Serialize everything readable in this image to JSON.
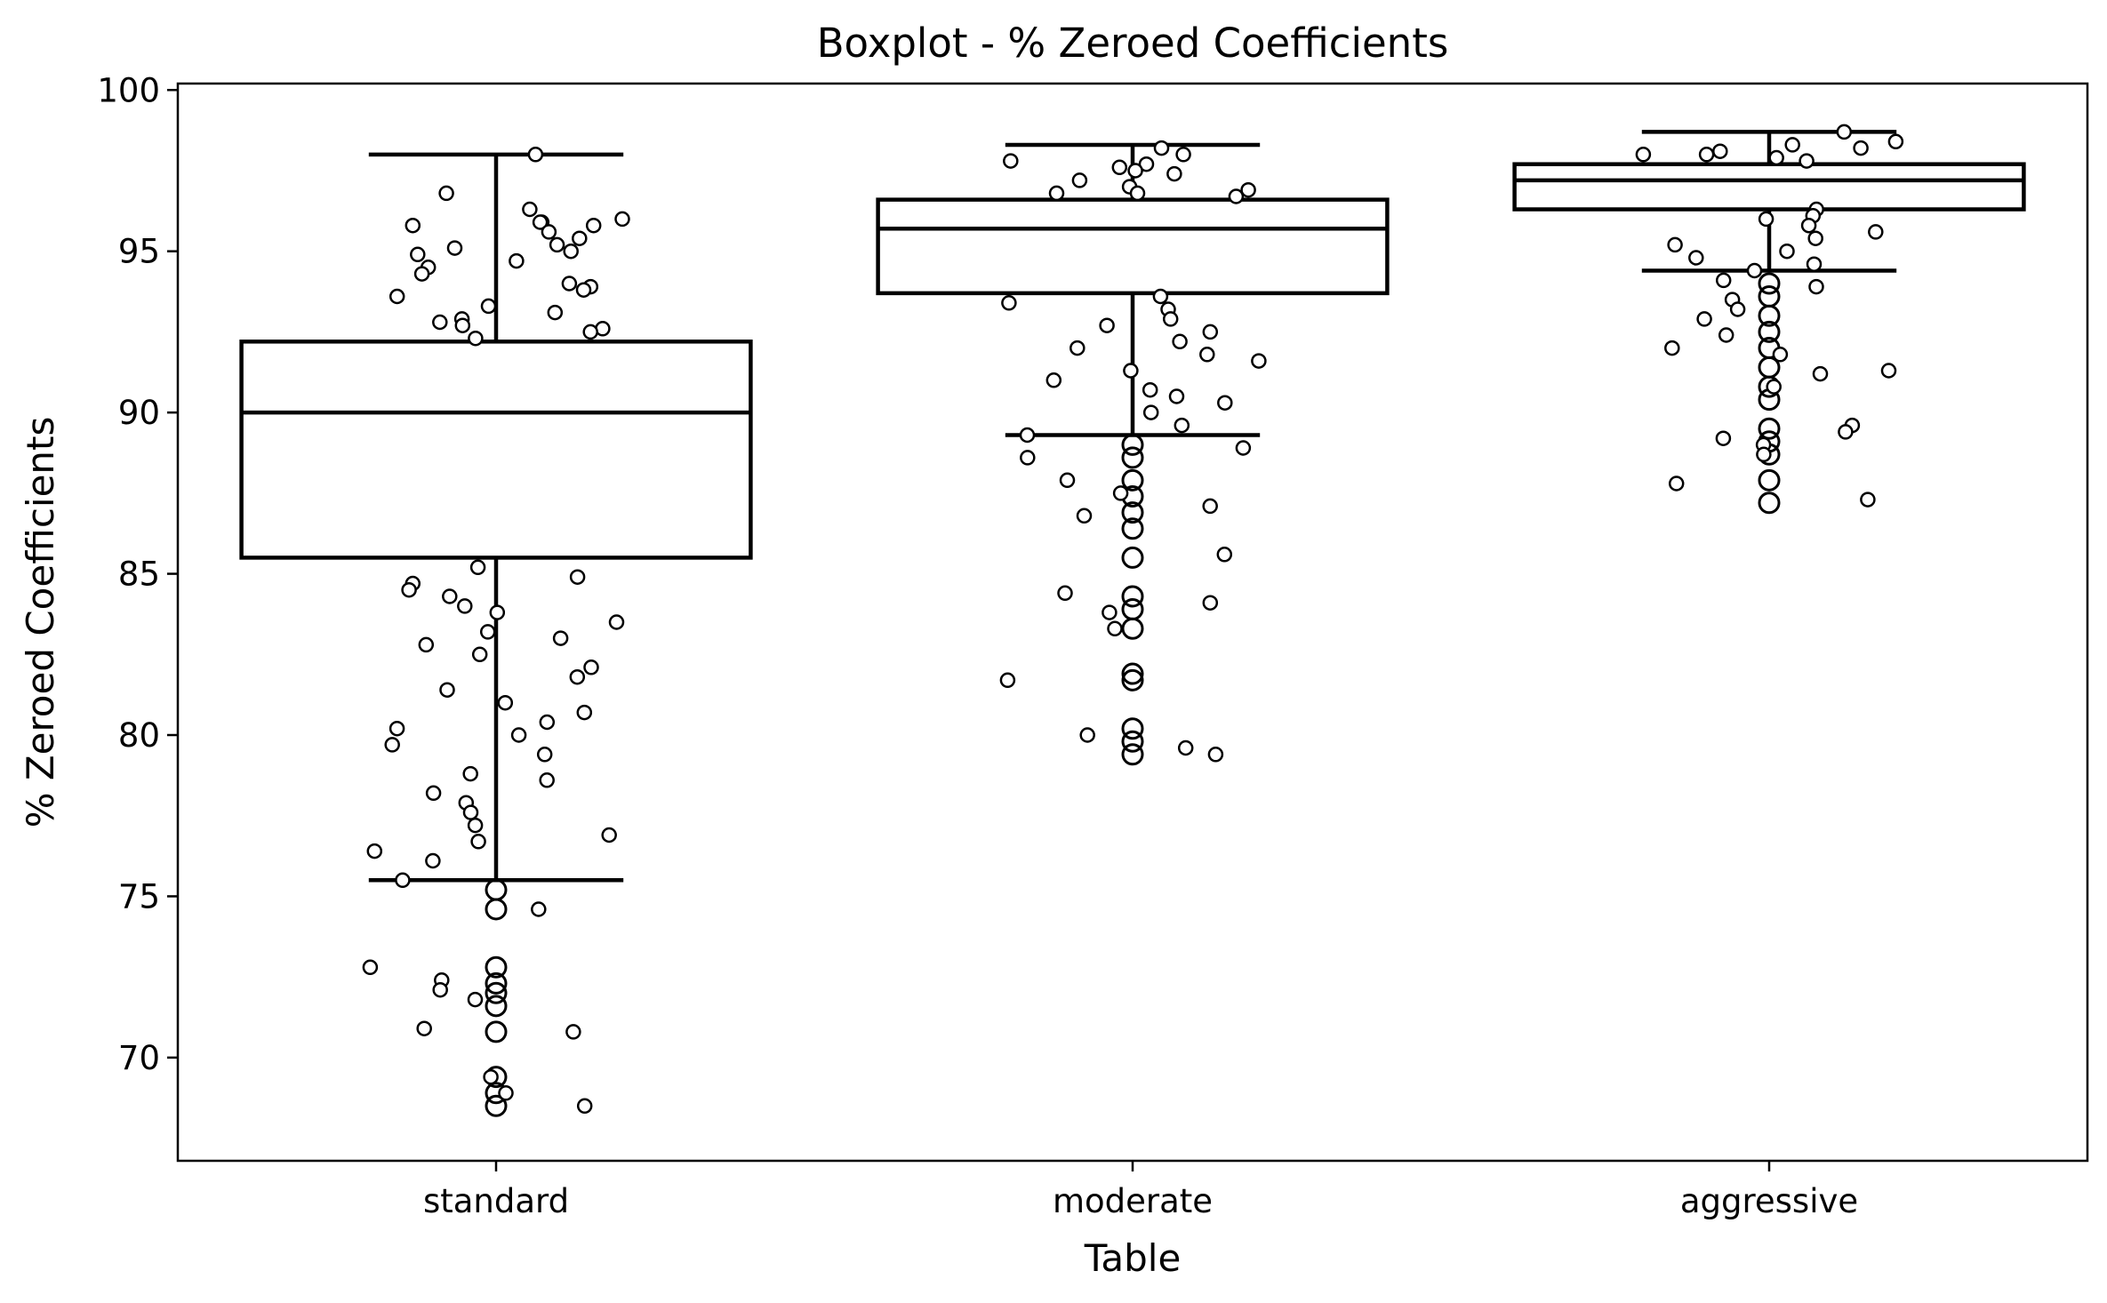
{
  "chart_data": {
    "type": "box",
    "title": "Boxplot - % Zeroed Coefficients",
    "xlabel": "Table",
    "ylabel": "% Zeroed Coefficients",
    "categories": [
      "standard",
      "moderate",
      "aggressive"
    ],
    "ylim": [
      66.8,
      100.2
    ],
    "yticks": [
      70,
      75,
      80,
      85,
      90,
      95,
      100
    ],
    "grid": false,
    "colors": {
      "box_edge": "#000000",
      "box_fill": "#ffffff",
      "point_edge": "#000000",
      "point_fill": "#ffffff"
    },
    "boxes": [
      {
        "name": "standard",
        "whisker_low": 75.5,
        "q1": 85.5,
        "median": 90.0,
        "q3": 92.2,
        "whisker_high": 98.0,
        "outliers": [
          75.2,
          74.6,
          72.8,
          72.3,
          72.0,
          71.6,
          70.8,
          69.4,
          68.9,
          68.5
        ],
        "points": [
          98.0,
          96.8,
          96.3,
          96.0,
          95.9,
          95.9,
          95.8,
          95.8,
          95.6,
          95.4,
          95.2,
          95.1,
          95.0,
          94.9,
          94.7,
          94.5,
          94.3,
          94.0,
          93.9,
          93.8,
          93.6,
          93.3,
          93.1,
          92.9,
          92.8,
          92.7,
          92.6,
          92.5,
          92.3,
          85.2,
          84.9,
          84.7,
          84.5,
          84.3,
          84.0,
          83.8,
          83.5,
          83.2,
          83.0,
          82.8,
          82.5,
          82.1,
          81.8,
          81.4,
          81.0,
          80.7,
          80.4,
          80.2,
          80.0,
          79.7,
          79.4,
          78.8,
          78.6,
          78.2,
          77.9,
          77.6,
          77.2,
          76.9,
          76.7,
          76.4,
          76.1,
          75.5,
          74.6,
          72.8,
          72.4,
          72.1,
          71.8,
          70.9,
          70.8,
          69.4,
          68.9,
          68.5
        ]
      },
      {
        "name": "moderate",
        "whisker_low": 89.3,
        "q1": 93.7,
        "median": 95.7,
        "q3": 96.6,
        "whisker_high": 98.3,
        "outliers": [
          89.0,
          88.6,
          87.9,
          87.4,
          86.9,
          86.4,
          85.5,
          84.3,
          83.9,
          83.3,
          81.9,
          81.7,
          80.2,
          79.8,
          79.4
        ],
        "points": [
          98.2,
          98.0,
          97.8,
          97.7,
          97.6,
          97.5,
          97.4,
          97.2,
          97.0,
          96.9,
          96.8,
          96.8,
          96.7,
          93.6,
          93.4,
          93.2,
          92.9,
          92.7,
          92.5,
          92.2,
          92.0,
          91.8,
          91.6,
          91.3,
          91.0,
          90.7,
          90.5,
          90.3,
          90.0,
          89.6,
          89.3,
          88.9,
          88.6,
          87.9,
          87.5,
          87.1,
          86.8,
          85.6,
          84.4,
          84.1,
          83.8,
          83.3,
          81.7,
          80.0,
          79.6,
          79.4
        ]
      },
      {
        "name": "aggressive",
        "whisker_low": 94.4,
        "q1": 96.3,
        "median": 97.2,
        "q3": 97.7,
        "whisker_high": 98.7,
        "outliers": [
          94.0,
          93.6,
          93.0,
          92.5,
          92.0,
          91.4,
          90.8,
          90.4,
          89.5,
          89.1,
          88.7,
          87.9,
          87.2
        ],
        "points": [
          98.7,
          98.4,
          98.3,
          98.2,
          98.1,
          98.0,
          98.0,
          97.9,
          97.8,
          96.3,
          96.1,
          96.0,
          95.8,
          95.6,
          95.4,
          95.2,
          95.0,
          94.8,
          94.6,
          94.4,
          94.1,
          93.9,
          93.5,
          93.2,
          92.9,
          92.4,
          92.0,
          91.8,
          91.3,
          91.2,
          90.8,
          89.6,
          89.4,
          89.2,
          89.0,
          88.7,
          87.8,
          87.3
        ]
      }
    ]
  }
}
